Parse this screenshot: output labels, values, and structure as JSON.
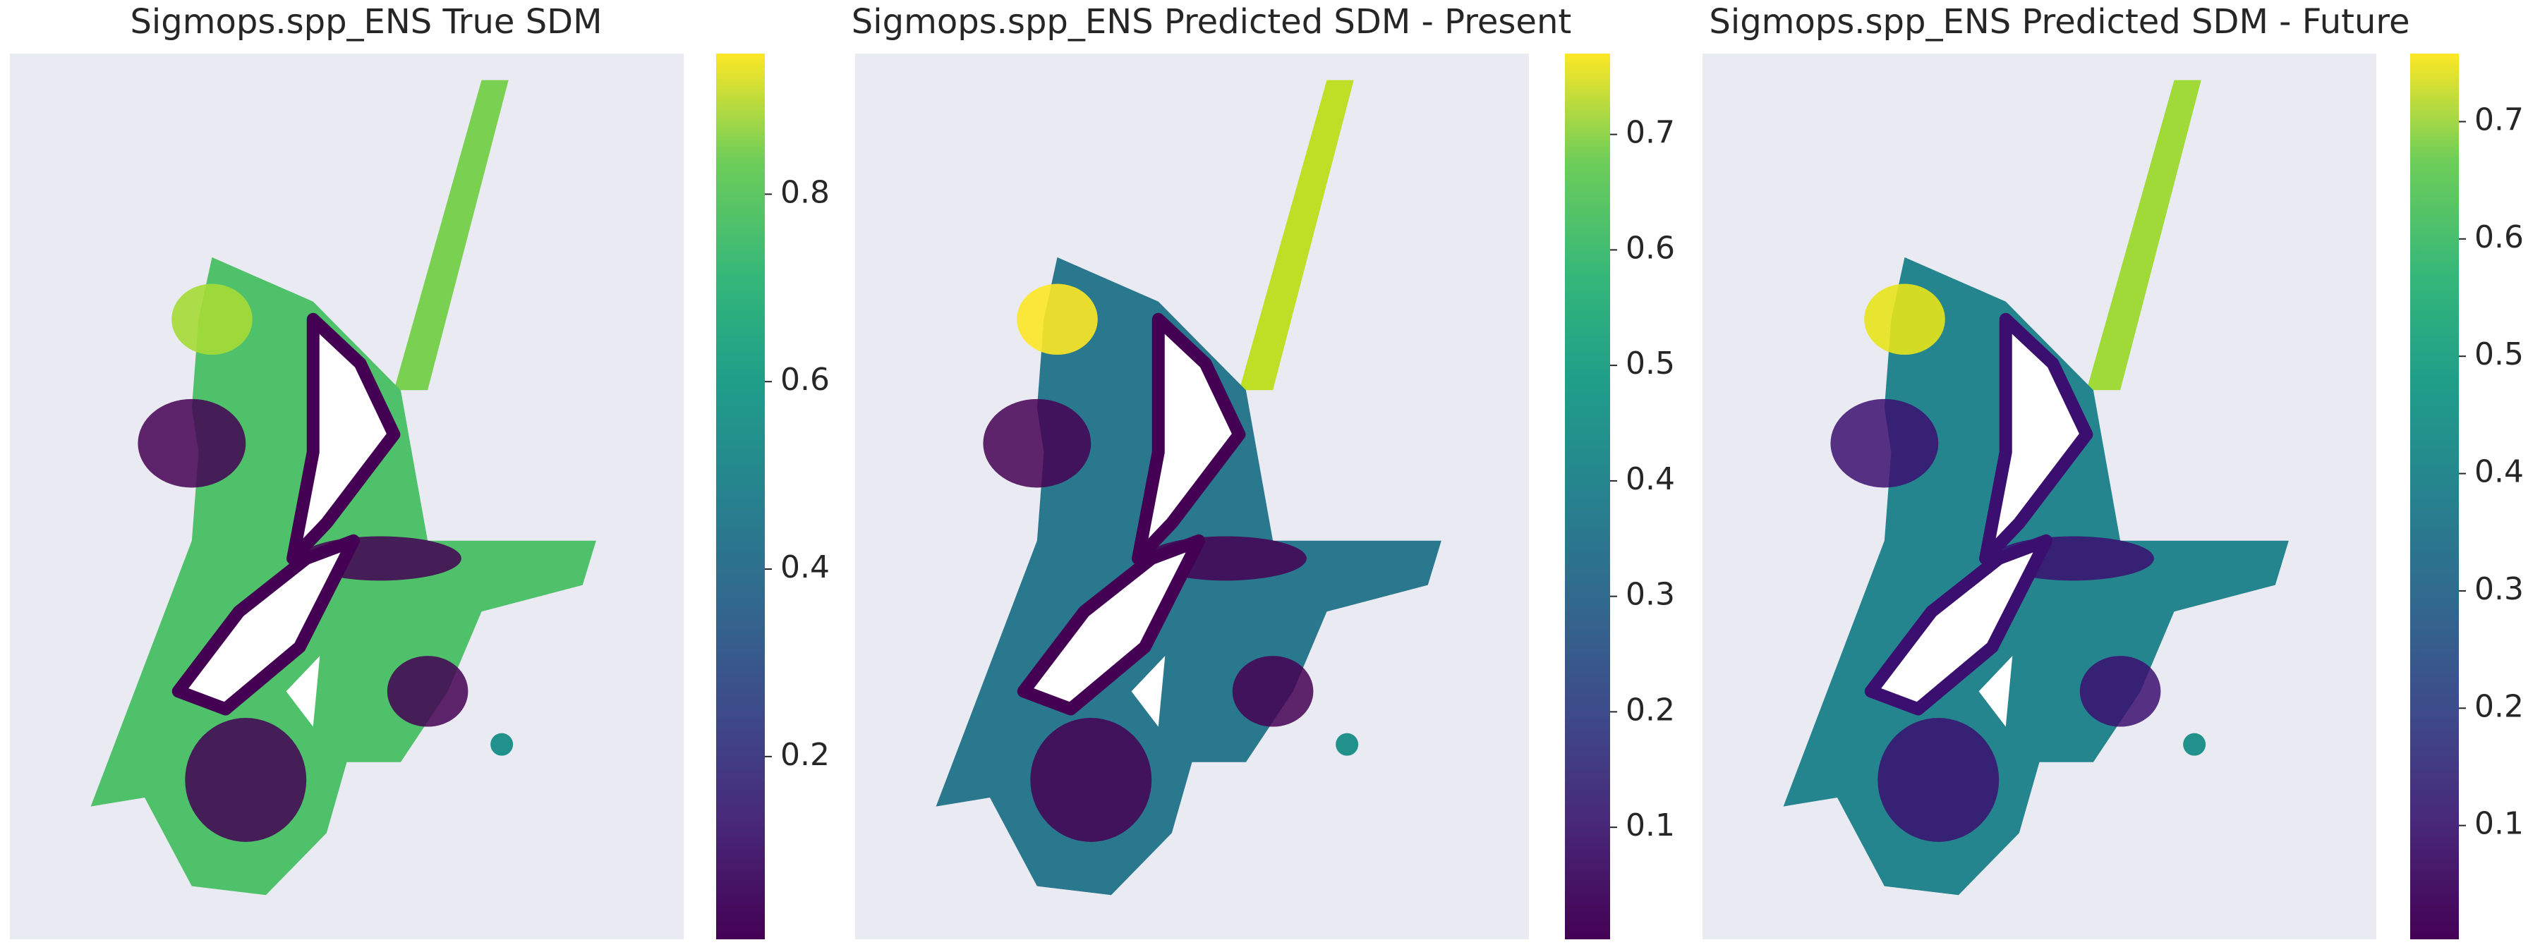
{
  "chart_data": [
    {
      "type": "map",
      "title": "Sigmops.spp_ENS True SDM",
      "colormap": "viridis",
      "colorbar": {
        "lim": [
          0.005,
          0.95
        ],
        "ticks": [
          0.2,
          0.4,
          0.6,
          0.8
        ]
      }
    },
    {
      "type": "map",
      "title": "Sigmops.spp_ENS Predicted SDM - Present",
      "colormap": "viridis",
      "colorbar": {
        "lim": [
          0.003,
          0.77
        ],
        "ticks": [
          0.1,
          0.2,
          0.3,
          0.4,
          0.5,
          0.6,
          0.7
        ]
      }
    },
    {
      "type": "map",
      "title": "Sigmops.spp_ENS Predicted SDM - Future",
      "colormap": "viridis",
      "colorbar": {
        "lim": [
          0.003,
          0.758
        ],
        "ticks": [
          0.1,
          0.2,
          0.3,
          0.4,
          0.5,
          0.6,
          0.7
        ]
      }
    }
  ]
}
